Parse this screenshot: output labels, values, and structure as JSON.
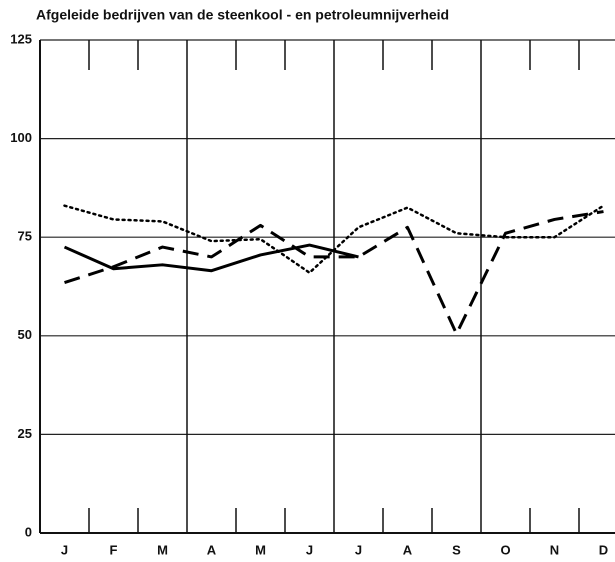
{
  "chart_data": {
    "type": "line",
    "title": "Afgeleide bedrijven van de steenkool - en petroleumnijverheid",
    "categories": [
      "J",
      "F",
      "M",
      "A",
      "M",
      "J",
      "J",
      "A",
      "S",
      "O",
      "N",
      "D"
    ],
    "series": [
      {
        "color": "#000000",
        "dash": "solid",
        "values": [
          72.5,
          67,
          68,
          66.5,
          70.5,
          73,
          70,
          null,
          null,
          null,
          null,
          null
        ]
      },
      {
        "color": "#000000",
        "dash": "dashed",
        "values": [
          63.5,
          67.5,
          72.5,
          70,
          78,
          70,
          70,
          77.5,
          50.5,
          76,
          79.5,
          81.5
        ]
      },
      {
        "color": "#000000",
        "dash": "dotted",
        "values": [
          83,
          79.5,
          79,
          74,
          74.5,
          66,
          77.5,
          82.5,
          76,
          75,
          75,
          83
        ]
      }
    ],
    "ylim": [
      0,
      125
    ],
    "yticks": [
      0,
      25,
      50,
      75,
      100,
      125
    ],
    "grid": true
  }
}
